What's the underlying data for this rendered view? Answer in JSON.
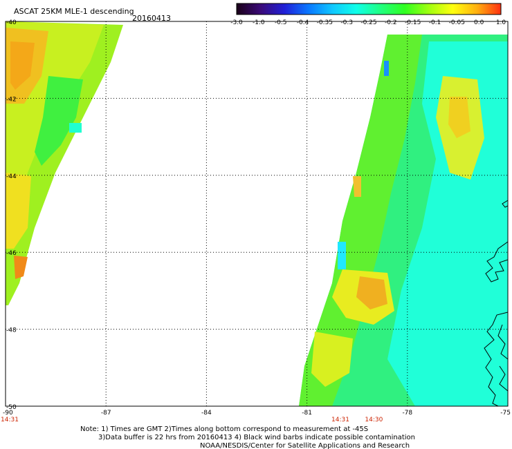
{
  "header": {
    "title": "ASCAT 25KM MLE-1 descending",
    "date": "20160413"
  },
  "colorbar": {
    "stops": [
      "#1a0018",
      "#3a0a78",
      "#2020d8",
      "#0a78ff",
      "#10c8ff",
      "#10ffe8",
      "#20ff80",
      "#30ff20",
      "#a0ff10",
      "#ffff10",
      "#ffb010",
      "#ff3010"
    ],
    "labels": [
      "-3.0",
      "-1.0",
      "-0.5",
      "-0.4",
      "-0.35",
      "-0.3",
      "-0.25",
      "-0.2",
      "-0.15",
      "-0.1",
      "-0.05",
      "0.0",
      "1.0"
    ]
  },
  "map": {
    "lat_labels": [
      "-40",
      "-42",
      "-44",
      "-46",
      "-48",
      "-50"
    ],
    "lon_labels": [
      "-90",
      "-87",
      "-84",
      "-81",
      "-78",
      "-75"
    ],
    "pass_times": [
      {
        "lon": -90,
        "label": "14:31"
      },
      {
        "lon": -80,
        "label": "14:31"
      },
      {
        "lon": -79,
        "label": "14:30"
      }
    ],
    "time_color": "#cc2200"
  },
  "notes": {
    "line1": "Note: 1) Times are GMT 2)Times along bottom correspond to measurement at -45S",
    "line2": "3)Data buffer is 22 hrs from 20160413 4) Black wind barbs indicate possible contamination",
    "line3": "NOAA/NESDIS/Center for Satellite Applications and Research"
  }
}
